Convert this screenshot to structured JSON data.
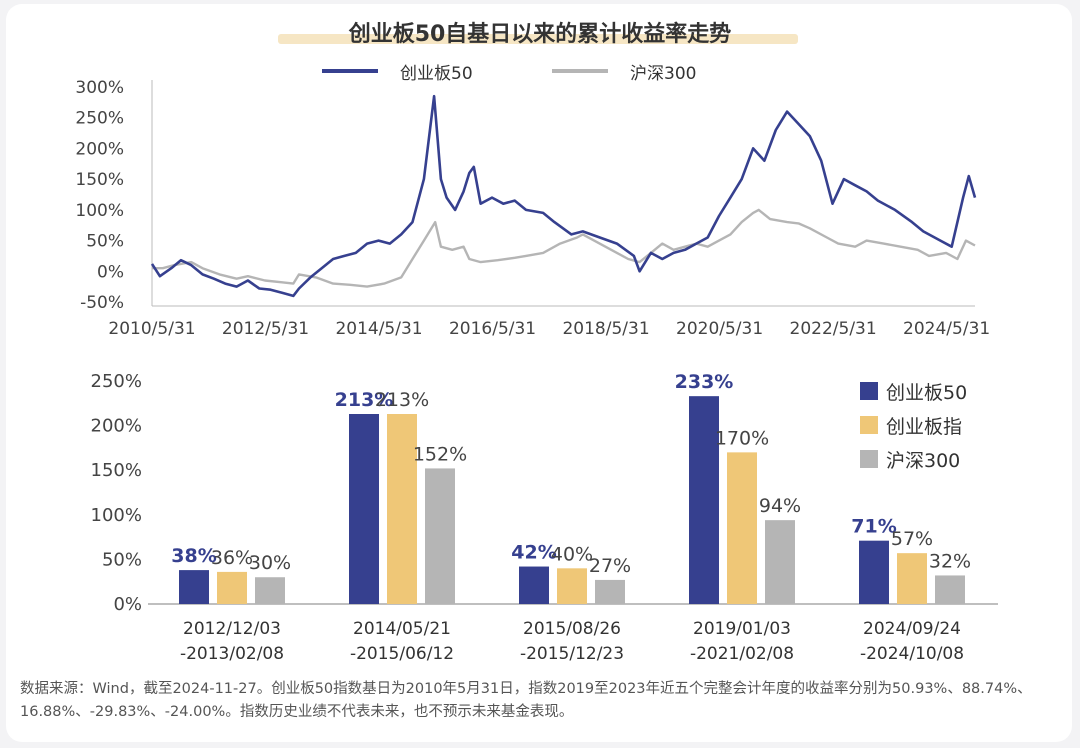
{
  "title": "创业板50自基日以来的累计收益率走势",
  "colors": {
    "cyb50": "#36408f",
    "cybz": "#efc777",
    "hs300": "#b5b5b5"
  },
  "legend_top": [
    "创业板50",
    "沪深300"
  ],
  "legend_bottom": [
    "创业板50",
    "创业板指",
    "沪深300"
  ],
  "chart_data": [
    {
      "type": "line",
      "yticks": [
        "300%",
        "250%",
        "200%",
        "150%",
        "100%",
        "50%",
        "0%",
        "-50%"
      ],
      "xticks": [
        "2010/5/31",
        "2012/5/31",
        "2014/5/31",
        "2016/5/31",
        "2018/5/31",
        "2020/5/31",
        "2022/5/31",
        "2024/5/31"
      ],
      "ylim": [
        -50,
        300
      ],
      "xlim": [
        2010.41,
        2024.91
      ],
      "grid": false,
      "series": [
        {
          "name": "创业板50",
          "points": [
            [
              2010.41,
              12
            ],
            [
              2010.55,
              -8
            ],
            [
              2010.75,
              5
            ],
            [
              2010.92,
              18
            ],
            [
              2011.1,
              10
            ],
            [
              2011.3,
              -5
            ],
            [
              2011.5,
              -12
            ],
            [
              2011.7,
              -20
            ],
            [
              2011.9,
              -25
            ],
            [
              2012.1,
              -15
            ],
            [
              2012.3,
              -28
            ],
            [
              2012.5,
              -30
            ],
            [
              2012.7,
              -35
            ],
            [
              2012.9,
              -40
            ],
            [
              2013.0,
              -28
            ],
            [
              2013.2,
              -10
            ],
            [
              2013.4,
              5
            ],
            [
              2013.6,
              20
            ],
            [
              2013.8,
              25
            ],
            [
              2014.0,
              30
            ],
            [
              2014.2,
              45
            ],
            [
              2014.4,
              50
            ],
            [
              2014.6,
              45
            ],
            [
              2014.8,
              60
            ],
            [
              2015.0,
              80
            ],
            [
              2015.2,
              150
            ],
            [
              2015.38,
              285
            ],
            [
              2015.5,
              150
            ],
            [
              2015.6,
              120
            ],
            [
              2015.75,
              100
            ],
            [
              2015.9,
              130
            ],
            [
              2016.0,
              160
            ],
            [
              2016.08,
              170
            ],
            [
              2016.2,
              110
            ],
            [
              2016.4,
              120
            ],
            [
              2016.6,
              110
            ],
            [
              2016.8,
              115
            ],
            [
              2017.0,
              100
            ],
            [
              2017.3,
              95
            ],
            [
              2017.5,
              80
            ],
            [
              2017.8,
              60
            ],
            [
              2018.0,
              65
            ],
            [
              2018.3,
              55
            ],
            [
              2018.6,
              45
            ],
            [
              2018.9,
              25
            ],
            [
              2019.0,
              0
            ],
            [
              2019.2,
              30
            ],
            [
              2019.4,
              20
            ],
            [
              2019.6,
              30
            ],
            [
              2019.8,
              35
            ],
            [
              2020.0,
              45
            ],
            [
              2020.2,
              55
            ],
            [
              2020.4,
              90
            ],
            [
              2020.6,
              120
            ],
            [
              2020.8,
              150
            ],
            [
              2021.0,
              200
            ],
            [
              2021.2,
              180
            ],
            [
              2021.4,
              230
            ],
            [
              2021.6,
              260
            ],
            [
              2021.8,
              240
            ],
            [
              2022.0,
              220
            ],
            [
              2022.2,
              180
            ],
            [
              2022.4,
              110
            ],
            [
              2022.6,
              150
            ],
            [
              2022.8,
              140
            ],
            [
              2023.0,
              130
            ],
            [
              2023.2,
              115
            ],
            [
              2023.5,
              100
            ],
            [
              2023.8,
              80
            ],
            [
              2024.0,
              65
            ],
            [
              2024.3,
              50
            ],
            [
              2024.5,
              40
            ],
            [
              2024.7,
              120
            ],
            [
              2024.8,
              155
            ],
            [
              2024.91,
              120
            ]
          ]
        },
        {
          "name": "沪深300",
          "points": [
            [
              2010.41,
              5
            ],
            [
              2010.6,
              5
            ],
            [
              2010.8,
              10
            ],
            [
              2010.92,
              12
            ],
            [
              2011.1,
              15
            ],
            [
              2011.3,
              5
            ],
            [
              2011.6,
              -5
            ],
            [
              2011.9,
              -12
            ],
            [
              2012.1,
              -8
            ],
            [
              2012.4,
              -15
            ],
            [
              2012.7,
              -18
            ],
            [
              2012.9,
              -20
            ],
            [
              2013.0,
              -5
            ],
            [
              2013.3,
              -10
            ],
            [
              2013.6,
              -20
            ],
            [
              2013.9,
              -22
            ],
            [
              2014.2,
              -25
            ],
            [
              2014.5,
              -20
            ],
            [
              2014.8,
              -10
            ],
            [
              2015.0,
              20
            ],
            [
              2015.2,
              50
            ],
            [
              2015.4,
              80
            ],
            [
              2015.5,
              40
            ],
            [
              2015.7,
              35
            ],
            [
              2015.9,
              40
            ],
            [
              2016.0,
              20
            ],
            [
              2016.2,
              15
            ],
            [
              2016.5,
              18
            ],
            [
              2016.8,
              22
            ],
            [
              2017.0,
              25
            ],
            [
              2017.3,
              30
            ],
            [
              2017.6,
              45
            ],
            [
              2017.9,
              55
            ],
            [
              2018.0,
              60
            ],
            [
              2018.2,
              50
            ],
            [
              2018.5,
              35
            ],
            [
              2018.8,
              20
            ],
            [
              2019.0,
              15
            ],
            [
              2019.2,
              30
            ],
            [
              2019.4,
              45
            ],
            [
              2019.6,
              35
            ],
            [
              2019.8,
              40
            ],
            [
              2020.0,
              45
            ],
            [
              2020.2,
              40
            ],
            [
              2020.4,
              50
            ],
            [
              2020.6,
              60
            ],
            [
              2020.8,
              80
            ],
            [
              2021.0,
              95
            ],
            [
              2021.1,
              100
            ],
            [
              2021.3,
              85
            ],
            [
              2021.6,
              80
            ],
            [
              2021.8,
              78
            ],
            [
              2022.0,
              70
            ],
            [
              2022.3,
              55
            ],
            [
              2022.5,
              45
            ],
            [
              2022.8,
              40
            ],
            [
              2023.0,
              50
            ],
            [
              2023.3,
              45
            ],
            [
              2023.6,
              40
            ],
            [
              2023.9,
              35
            ],
            [
              2024.1,
              25
            ],
            [
              2024.4,
              30
            ],
            [
              2024.6,
              20
            ],
            [
              2024.75,
              50
            ],
            [
              2024.91,
              42
            ]
          ]
        }
      ]
    },
    {
      "type": "bar",
      "yticks": [
        "250%",
        "200%",
        "150%",
        "100%",
        "50%",
        "0%"
      ],
      "ylim": [
        0,
        250
      ],
      "categories": [
        "2012/12/03\n-2013/02/08",
        "2014/05/21\n-2015/06/12",
        "2015/08/26\n-2015/12/23",
        "2019/01/03\n-2021/02/08",
        "2024/09/24\n-2024/10/08"
      ],
      "series": [
        {
          "name": "创业板50",
          "values": [
            38,
            213,
            42,
            233,
            71
          ],
          "labels": [
            "38%",
            "213%",
            "42%",
            "233%",
            "71%"
          ]
        },
        {
          "name": "创业板指",
          "values": [
            36,
            213,
            40,
            170,
            57
          ],
          "labels": [
            "36%",
            "213%",
            "40%",
            "170%",
            "57%"
          ]
        },
        {
          "name": "沪深300",
          "values": [
            30,
            152,
            27,
            94,
            32
          ],
          "labels": [
            "30%",
            "152%",
            "27%",
            "94%",
            "32%"
          ]
        }
      ]
    }
  ],
  "footnote": "数据来源：Wind，截至2024-11-27。创业板50指数基日为2010年5月31日，指数2019至2023年近五个完整会计年度的收益率分别为50.93%、88.74%、16.88%、-29.83%、-24.00%。指数历史业绩不代表未来，也不预示未来基金表现。"
}
